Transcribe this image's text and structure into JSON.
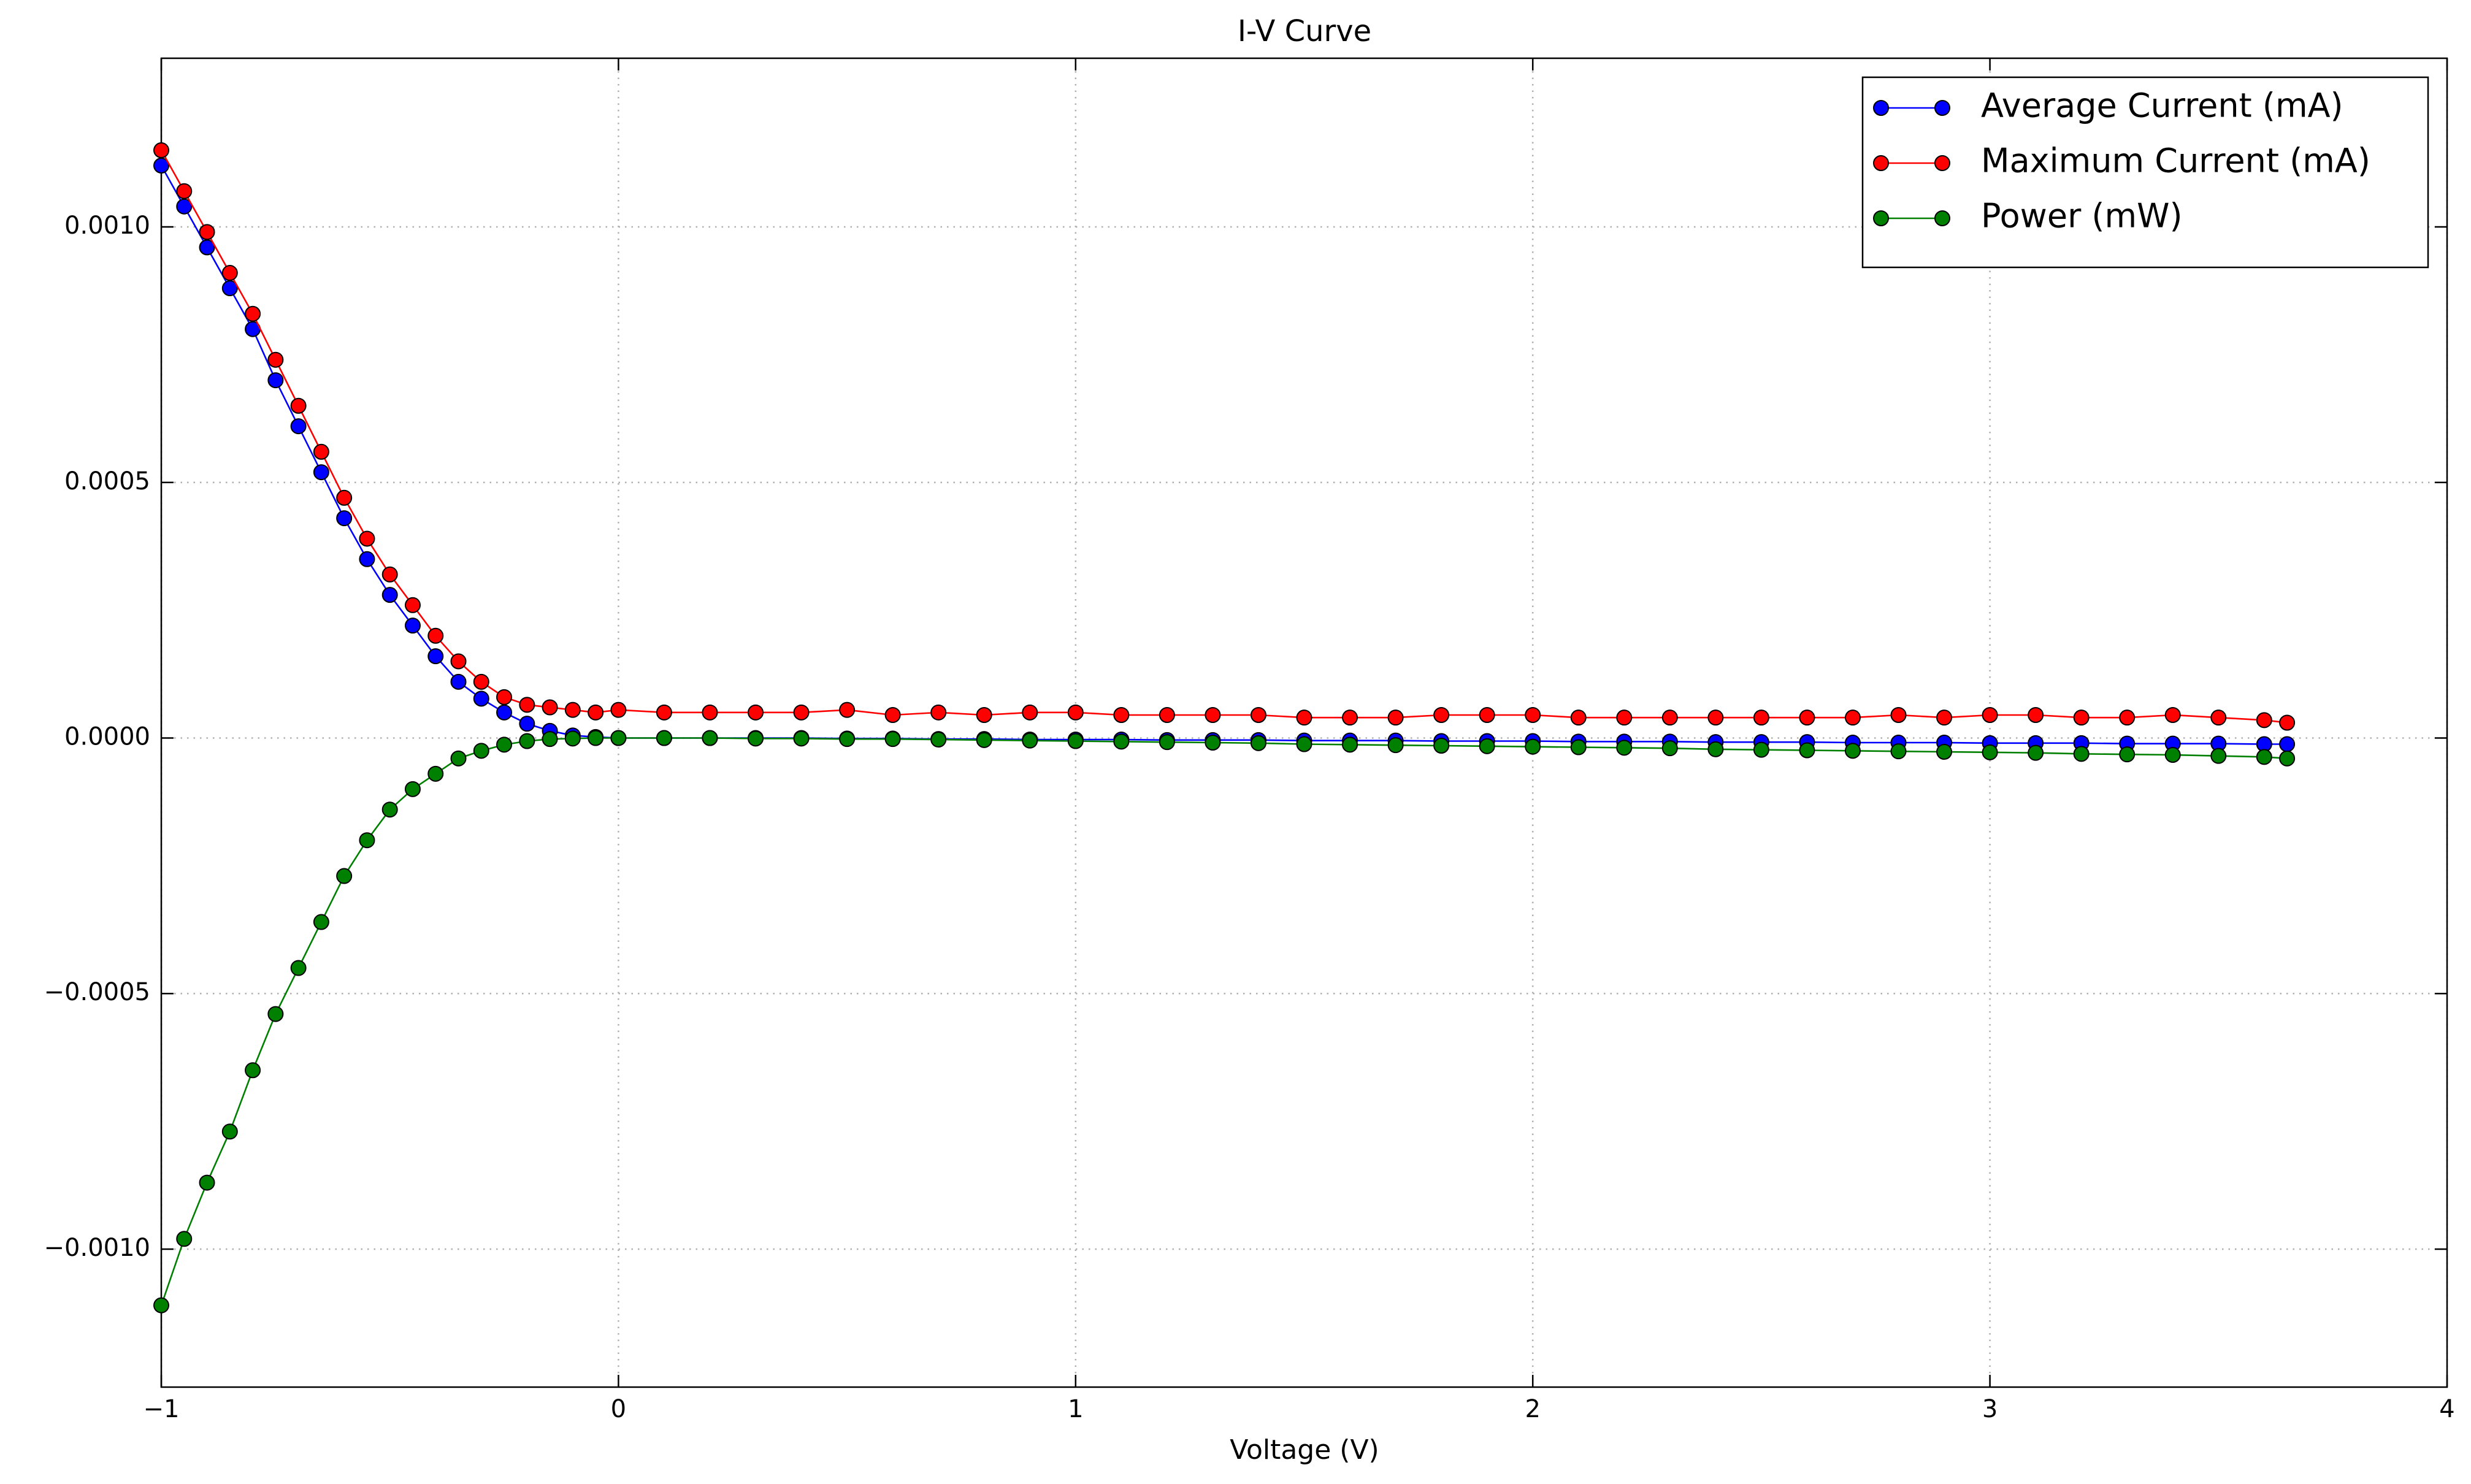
{
  "chart_data": {
    "type": "line",
    "title": "I-V Curve",
    "xlabel": "Voltage (V)",
    "x": [
      -1,
      -0.95,
      -0.9,
      -0.85,
      -0.8,
      -0.75,
      -0.7,
      -0.65,
      -0.6,
      -0.55,
      -0.5,
      -0.45,
      -0.4,
      -0.35,
      -0.3,
      -0.25,
      -0.2,
      -0.15,
      -0.1,
      -0.05,
      0,
      0.1,
      0.2,
      0.3,
      0.4,
      0.5,
      0.6,
      0.7,
      0.8,
      0.9,
      1.0,
      1.1,
      1.2,
      1.3,
      1.4,
      1.5,
      1.6,
      1.7,
      1.8,
      1.9,
      2.0,
      2.1,
      2.2,
      2.3,
      2.4,
      2.5,
      2.6,
      2.7,
      2.8,
      2.9,
      3.0,
      3.1,
      3.2,
      3.3,
      3.4,
      3.5,
      3.6,
      3.65
    ],
    "series": [
      {
        "name": "Average Current (mA)",
        "color": "#0000ff",
        "values": [
          0.00112,
          0.00104,
          0.00096,
          0.00088,
          0.0008,
          0.0007,
          0.00061,
          0.00052,
          0.00043,
          0.00035,
          0.00028,
          0.00022,
          0.00016,
          0.00011,
          7.7e-05,
          5e-05,
          2.8e-05,
          1.4e-05,
          5e-06,
          2e-06,
          0,
          0,
          0,
          0,
          0,
          -1e-06,
          -1e-06,
          -2e-06,
          -2e-06,
          -3e-06,
          -3e-06,
          -3e-06,
          -4e-06,
          -4e-06,
          -4e-06,
          -5e-06,
          -5e-06,
          -5e-06,
          -6e-06,
          -6e-06,
          -6e-06,
          -7e-06,
          -7e-06,
          -7e-06,
          -8e-06,
          -8e-06,
          -8e-06,
          -9e-06,
          -9e-06,
          -9e-06,
          -1e-05,
          -1e-05,
          -1e-05,
          -1.1e-05,
          -1.1e-05,
          -1.1e-05,
          -1.2e-05,
          -1.2e-05
        ]
      },
      {
        "name": "Maximum Current (mA)",
        "color": "#ff0000",
        "values": [
          0.00115,
          0.00107,
          0.00099,
          0.00091,
          0.00083,
          0.00074,
          0.00065,
          0.00056,
          0.00047,
          0.00039,
          0.00032,
          0.00026,
          0.0002,
          0.00015,
          0.00011,
          8e-05,
          6.5e-05,
          6e-05,
          5.5e-05,
          5e-05,
          5.5e-05,
          5e-05,
          5e-05,
          5e-05,
          5e-05,
          5.5e-05,
          4.5e-05,
          5e-05,
          4.5e-05,
          5e-05,
          5e-05,
          4.5e-05,
          4.5e-05,
          4.5e-05,
          4.5e-05,
          4e-05,
          4e-05,
          4e-05,
          4.5e-05,
          4.5e-05,
          4.5e-05,
          4e-05,
          4e-05,
          4e-05,
          4e-05,
          4e-05,
          4e-05,
          4e-05,
          4.5e-05,
          4e-05,
          4.5e-05,
          4.5e-05,
          4e-05,
          4e-05,
          4.5e-05,
          4e-05,
          3.5e-05,
          3e-05
        ]
      },
      {
        "name": "Power (mW)",
        "color": "#008000",
        "values": [
          -0.00111,
          -0.00098,
          -0.00087,
          -0.00077,
          -0.00065,
          -0.00054,
          -0.00045,
          -0.00036,
          -0.00027,
          -0.0002,
          -0.00014,
          -0.0001,
          -7e-05,
          -4e-05,
          -2.5e-05,
          -1.3e-05,
          -6e-06,
          -2e-06,
          -1e-06,
          0,
          0,
          0,
          0,
          -1e-06,
          -1e-06,
          -2e-06,
          -2e-06,
          -3e-06,
          -4e-06,
          -5e-06,
          -6e-06,
          -7e-06,
          -8e-06,
          -9e-06,
          -1e-05,
          -1.2e-05,
          -1.3e-05,
          -1.4e-05,
          -1.5e-05,
          -1.6e-05,
          -1.7e-05,
          -1.8e-05,
          -1.9e-05,
          -2e-05,
          -2.2e-05,
          -2.3e-05,
          -2.4e-05,
          -2.5e-05,
          -2.6e-05,
          -2.7e-05,
          -2.8e-05,
          -2.9e-05,
          -3.1e-05,
          -3.2e-05,
          -3.3e-05,
          -3.5e-05,
          -3.7e-05,
          -4e-05
        ]
      }
    ],
    "xlim": [
      -1,
      4
    ],
    "xticks": [
      {
        "value": -1,
        "label": "−1"
      },
      0,
      1,
      2,
      3,
      4
    ],
    "ylim": [
      -0.00127,
      0.00133
    ],
    "yticks": [
      {
        "value": -0.001,
        "label": "−0.0010"
      },
      {
        "value": -0.0005,
        "label": "−0.0005"
      },
      {
        "value": 0,
        "label": "0.0000"
      },
      {
        "value": 0.0005,
        "label": "0.0005"
      },
      {
        "value": 0.001,
        "label": "0.0010"
      }
    ],
    "grid": true,
    "legend": "upper right"
  }
}
